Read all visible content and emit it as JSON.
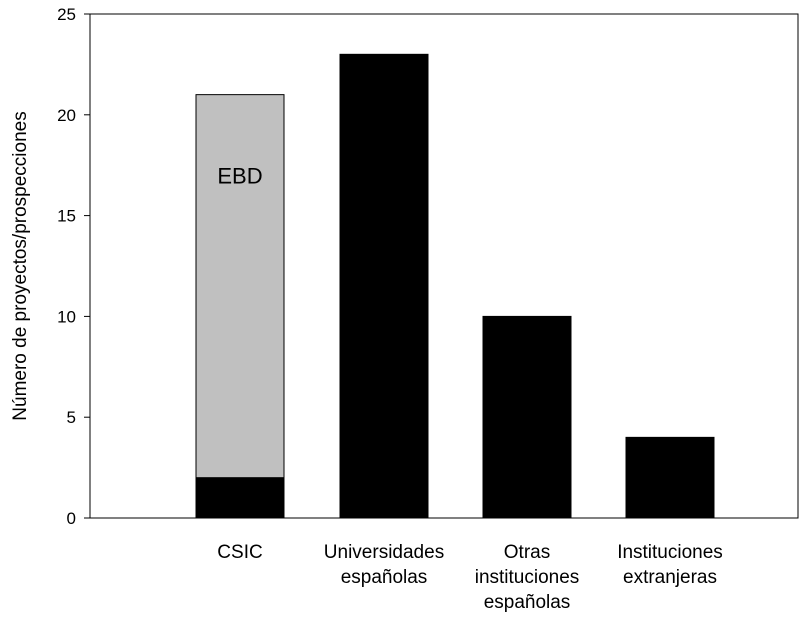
{
  "chart_data": {
    "type": "bar",
    "stacked": true,
    "title": "",
    "xlabel": "",
    "ylabel": "Número de proyectos/prospecciones",
    "ylim": [
      0,
      25
    ],
    "yticks": [
      0,
      5,
      10,
      15,
      20,
      25
    ],
    "grid": false,
    "categories": [
      [
        "CSIC"
      ],
      [
        "Universidades",
        "españolas"
      ],
      [
        "Otras",
        "instituciones",
        "españolas"
      ],
      [
        "Instituciones",
        "extranjeras"
      ]
    ],
    "series": [
      {
        "values": [
          2,
          23,
          10,
          4
        ],
        "color": "#000000"
      },
      {
        "name": "EBD",
        "values": [
          19,
          0,
          0,
          0
        ],
        "color": "#c0c0c0"
      }
    ],
    "annotations": [
      {
        "text": "EBD",
        "category_index": 0,
        "y": 17
      }
    ]
  }
}
